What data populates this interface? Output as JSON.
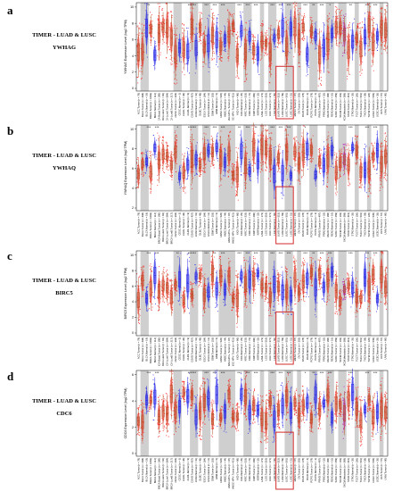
{
  "figure": {
    "panels": [
      {
        "letter": "a",
        "source": "TIMER - LUAD & LUSC",
        "gene": "YWHAG",
        "ylabel": "YWHAG Expression Level (log2 TPM)",
        "yticks": [
          "0",
          "2",
          "4",
          "6",
          "8",
          "10"
        ]
      },
      {
        "letter": "b",
        "source": "TIMER - LUAD & LUSC",
        "gene": "YWHAQ",
        "ylabel": "YWHAQ Expression Level (log2 TPM)",
        "yticks": [
          "2",
          "4",
          "6",
          "8",
          "10"
        ]
      },
      {
        "letter": "c",
        "source": "TIMER - LUAD & LUSC",
        "gene": "BIRC5",
        "ylabel": "BIRC5 Expression Level (log2 TPM)",
        "yticks": [
          "0",
          "2",
          "4",
          "6",
          "8",
          "10"
        ]
      },
      {
        "letter": "d",
        "source": "TIMER - LUAD & LUSC",
        "gene": "CDC6",
        "ylabel": "CDC6 Expression Level (log2 TPM)",
        "yticks": [
          "0",
          "2",
          "4",
          "6"
        ]
      }
    ],
    "categories": [
      "ACC.Tumor (n = 79)",
      "BLCA.Tumor (n = 408)",
      "BLCA.Normal (n = 19)",
      "BRCA.Tumor (n = 1093)",
      "BRCA.Normal (n = 112)",
      "BRCA-Basal.Tumor (n = 190)",
      "BRCA-Her2.Tumor (n = 82)",
      "BRCA-LumA.Tumor (n = 564)",
      "BRCA-LumB.Tumor (n = 217)",
      "CESC.Tumor (n = 304)",
      "CESC.Normal (n = 3)",
      "CHOL.Tumor (n = 36)",
      "CHOL.Normal (n = 9)",
      "COAD.Tumor (n = 457)",
      "COAD.Normal (n = 41)",
      "DLBC.Tumor (n = 48)",
      "ESCA.Tumor (n = 184)",
      "ESCA.Normal (n = 11)",
      "GBM.Tumor (n = 153)",
      "GBM.Normal (n = 5)",
      "HNSC.Tumor (n = 520)",
      "HNSC.Normal (n = 44)",
      "HNSC-HPV+.Tumor (n = 97)",
      "HNSC-HPV-.Tumor (n = 421)",
      "KICH.Tumor (n = 66)",
      "KICH.Normal (n = 25)",
      "KIRC.Tumor (n = 533)",
      "KIRC.Normal (n = 72)",
      "KIRP.Tumor (n = 290)",
      "KIRP.Normal (n = 32)",
      "LAML.Tumor (n = 173)",
      "LGG.Tumor (n = 516)",
      "LIHC.Tumor (n = 371)",
      "LIHC.Normal (n = 50)",
      "LUAD.Tumor (n = 515)",
      "LUAD.Normal (n = 59)",
      "LUSC.Tumor (n = 501)",
      "LUSC.Normal (n = 51)",
      "MESO.Tumor (n = 87)",
      "OV.Tumor (n = 303)",
      "PAAD.Tumor (n = 178)",
      "PAAD.Normal (n = 4)",
      "PCPG.Tumor (n = 179)",
      "PCPG.Normal (n = 3)",
      "PRAD.Tumor (n = 497)",
      "PRAD.Normal (n = 52)",
      "READ.Tumor (n = 166)",
      "READ.Normal (n = 10)",
      "SARC.Tumor (n = 259)",
      "SKCM.Tumor (n = 103)",
      "SKCM.Metastasis (n = 368)",
      "STAD.Tumor (n = 415)",
      "STAD.Normal (n = 35)",
      "TGCT.Tumor (n = 150)",
      "THCA.Tumor (n = 501)",
      "THCA.Normal (n = 59)",
      "THYM.Tumor (n = 120)",
      "UCEC.Tumor (n = 545)",
      "UCEC.Normal (n = 35)",
      "UCS.Tumor (n = 57)",
      "UVM.Tumor (n = 80)"
    ],
    "significance": {
      "a": [
        "",
        "",
        "**",
        "",
        "",
        "",
        "",
        "",
        "",
        "",
        "",
        "",
        "***",
        "***",
        "",
        "",
        "***",
        "",
        "***",
        "",
        "***",
        "",
        "",
        "",
        "***",
        "",
        "***",
        "",
        "***",
        "",
        "",
        "",
        "***",
        "",
        "***",
        "",
        "***",
        "",
        "",
        "",
        "***",
        "",
        "**",
        "",
        "***",
        "",
        "*",
        "",
        "",
        "",
        "",
        "**",
        "",
        "",
        "",
        "***",
        "",
        "***",
        "",
        "",
        ""
      ],
      "b": [
        "",
        "",
        "***",
        "",
        "***",
        "",
        "",
        "",
        "",
        "*",
        "",
        "",
        "***",
        "***",
        "",
        "",
        "***",
        "",
        "***",
        "",
        "***",
        "",
        "",
        "",
        "**",
        "",
        "***",
        "",
        "**",
        "",
        "",
        "",
        "***",
        "",
        "***",
        "",
        "***",
        "",
        "",
        "",
        "*",
        "",
        "",
        "",
        "",
        "",
        "",
        "",
        "",
        "",
        "",
        "***",
        "",
        "",
        "",
        "***",
        "",
        "***",
        "",
        "",
        ""
      ],
      "c": [
        "",
        "",
        "***",
        "",
        "***",
        "",
        "",
        "",
        "",
        "**",
        "",
        "",
        "***",
        "***",
        "",
        "",
        "***",
        "",
        "**",
        "",
        "***",
        "",
        "",
        "",
        "***",
        "",
        "***",
        "",
        "***",
        "",
        "",
        "",
        "***",
        "",
        "***",
        "",
        "***",
        "",
        "",
        "",
        "***",
        "",
        "**",
        "",
        "***",
        "",
        "***",
        "",
        "",
        "",
        "",
        "***",
        "",
        "",
        "",
        "***",
        "",
        "***",
        "",
        "",
        ""
      ],
      "d": [
        "",
        "",
        "***",
        "",
        "***",
        "",
        "",
        "",
        "",
        "",
        "",
        "",
        "***",
        "***",
        "",
        "",
        "***",
        "",
        "***",
        "",
        "***",
        "",
        "",
        "",
        "***",
        "",
        "***",
        "",
        "***",
        "",
        "",
        "",
        "***",
        "",
        "***",
        "",
        "***",
        "",
        "",
        "",
        "*",
        "",
        "**",
        "",
        "***",
        "",
        "***",
        "",
        "",
        "",
        "",
        "***",
        "",
        "",
        "",
        "***",
        "",
        "***",
        "",
        "",
        ""
      ]
    },
    "highlight_categories": [
      "LUAD.Tumor (n = 515)",
      "LUAD.Normal (n = 59)",
      "LUSC.Tumor (n = 501)",
      "LUSC.Normal (n = 51)"
    ],
    "colors": {
      "tumor": "#ff1a1a",
      "normal": "#2a2ae6",
      "metastasis": "#b300b3",
      "tumor_box": "#b0582a",
      "shade": "#cfcfcf",
      "highlight_box": "#d42b2b"
    }
  }
}
